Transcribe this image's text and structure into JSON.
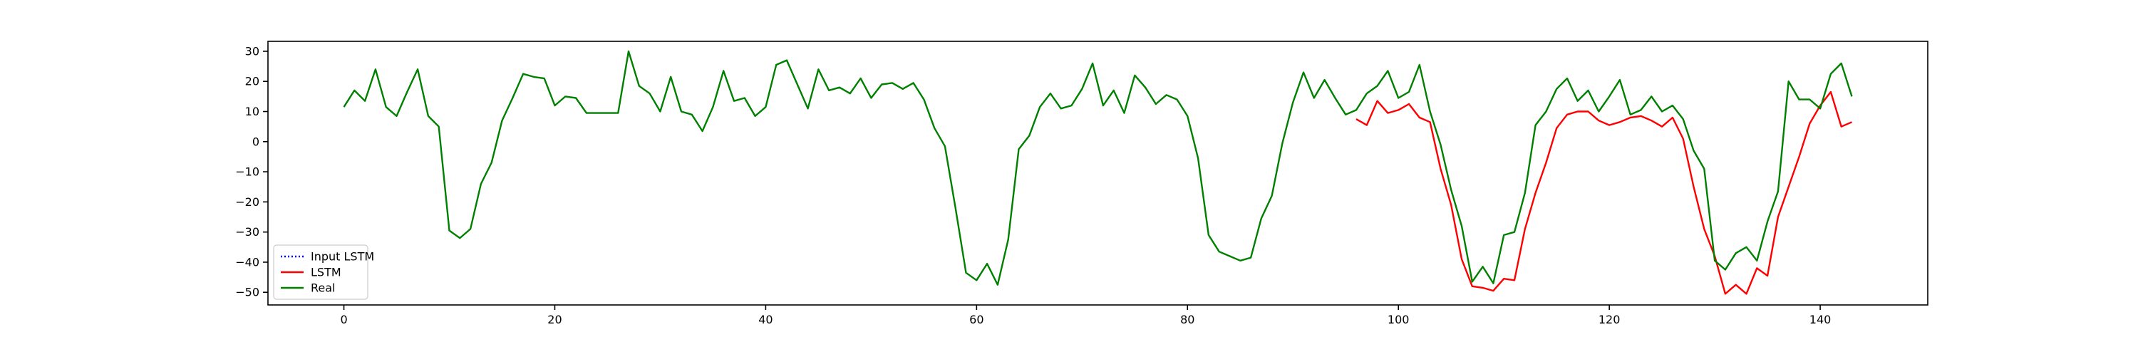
{
  "chart_data": {
    "type": "line",
    "title": "",
    "xlabel": "",
    "ylabel": "",
    "xlim": [
      -7.2,
      150.2
    ],
    "ylim": [
      -54.2,
      33.3
    ],
    "x_ticks": [
      0,
      20,
      40,
      60,
      80,
      100,
      120,
      140
    ],
    "y_ticks": [
      -50,
      -40,
      -30,
      -20,
      -10,
      0,
      10,
      20,
      30
    ],
    "grid": false,
    "legend_position": "lower-left",
    "series": [
      {
        "name": "Input LSTM",
        "color": "#0000ff",
        "style": "dotted",
        "x_start": 0,
        "values": []
      },
      {
        "name": "LSTM",
        "color": "#ff0000",
        "style": "solid",
        "x_start": 96,
        "values": [
          7.5,
          5.5,
          13.5,
          9.5,
          10.5,
          12.5,
          8,
          6.5,
          -9,
          -21,
          -39,
          -48,
          -48.5,
          -49.5,
          -45.5,
          -46,
          -29,
          -17,
          -7,
          4.5,
          9,
          10,
          10,
          7,
          5.5,
          6.5,
          8,
          8.5,
          7,
          5,
          8,
          1,
          -15,
          -29,
          -38,
          -50.5,
          -47.5,
          -50.5,
          -42,
          -44.5,
          -25,
          -15,
          -5,
          6,
          12,
          16.5,
          5,
          6.5
        ]
      },
      {
        "name": "Real",
        "color": "#008000",
        "style": "solid",
        "x_start": 0,
        "values": [
          11.5,
          17,
          13.5,
          24,
          11.5,
          8.5,
          16.5,
          24,
          8.5,
          5,
          -29.5,
          -32,
          -29,
          -14,
          -7,
          7,
          14.5,
          22.5,
          21.5,
          21,
          12,
          15,
          14.5,
          9.5,
          9.5,
          9.5,
          9.5,
          30,
          18.5,
          16,
          10,
          21.5,
          10,
          9,
          3.5,
          11.5,
          23.5,
          13.5,
          14.5,
          8.5,
          11.5,
          25.5,
          27,
          19,
          11,
          24,
          17,
          18,
          16,
          21,
          14.5,
          19,
          19.5,
          17.5,
          19.5,
          14,
          4.5,
          -1.5,
          -22,
          -43.5,
          -46,
          -40.5,
          -47.5,
          -32.5,
          -2.5,
          2,
          11.5,
          16,
          11,
          12,
          17.5,
          26,
          12,
          17,
          9.5,
          22,
          18,
          12.5,
          15.5,
          14,
          8.5,
          -5.5,
          -31,
          -36.5,
          -38,
          -39.5,
          -38.5,
          -25.5,
          -18,
          -0.5,
          13,
          23,
          14.5,
          20.5,
          14.5,
          9,
          10.5,
          16,
          18.5,
          23.5,
          14.5,
          16.5,
          25.5,
          10,
          -1,
          -16,
          -28,
          -46.5,
          -41.5,
          -47,
          -31,
          -30,
          -17,
          5.5,
          10,
          17.5,
          21,
          13.5,
          17,
          10,
          15,
          20.5,
          9,
          10.5,
          15,
          10,
          12,
          7.5,
          -3,
          -9,
          -39.5,
          -42.5,
          -37,
          -35,
          -39.5,
          -26.5,
          -16.5,
          20,
          14,
          14,
          11,
          22.5,
          26,
          15
        ]
      }
    ]
  }
}
